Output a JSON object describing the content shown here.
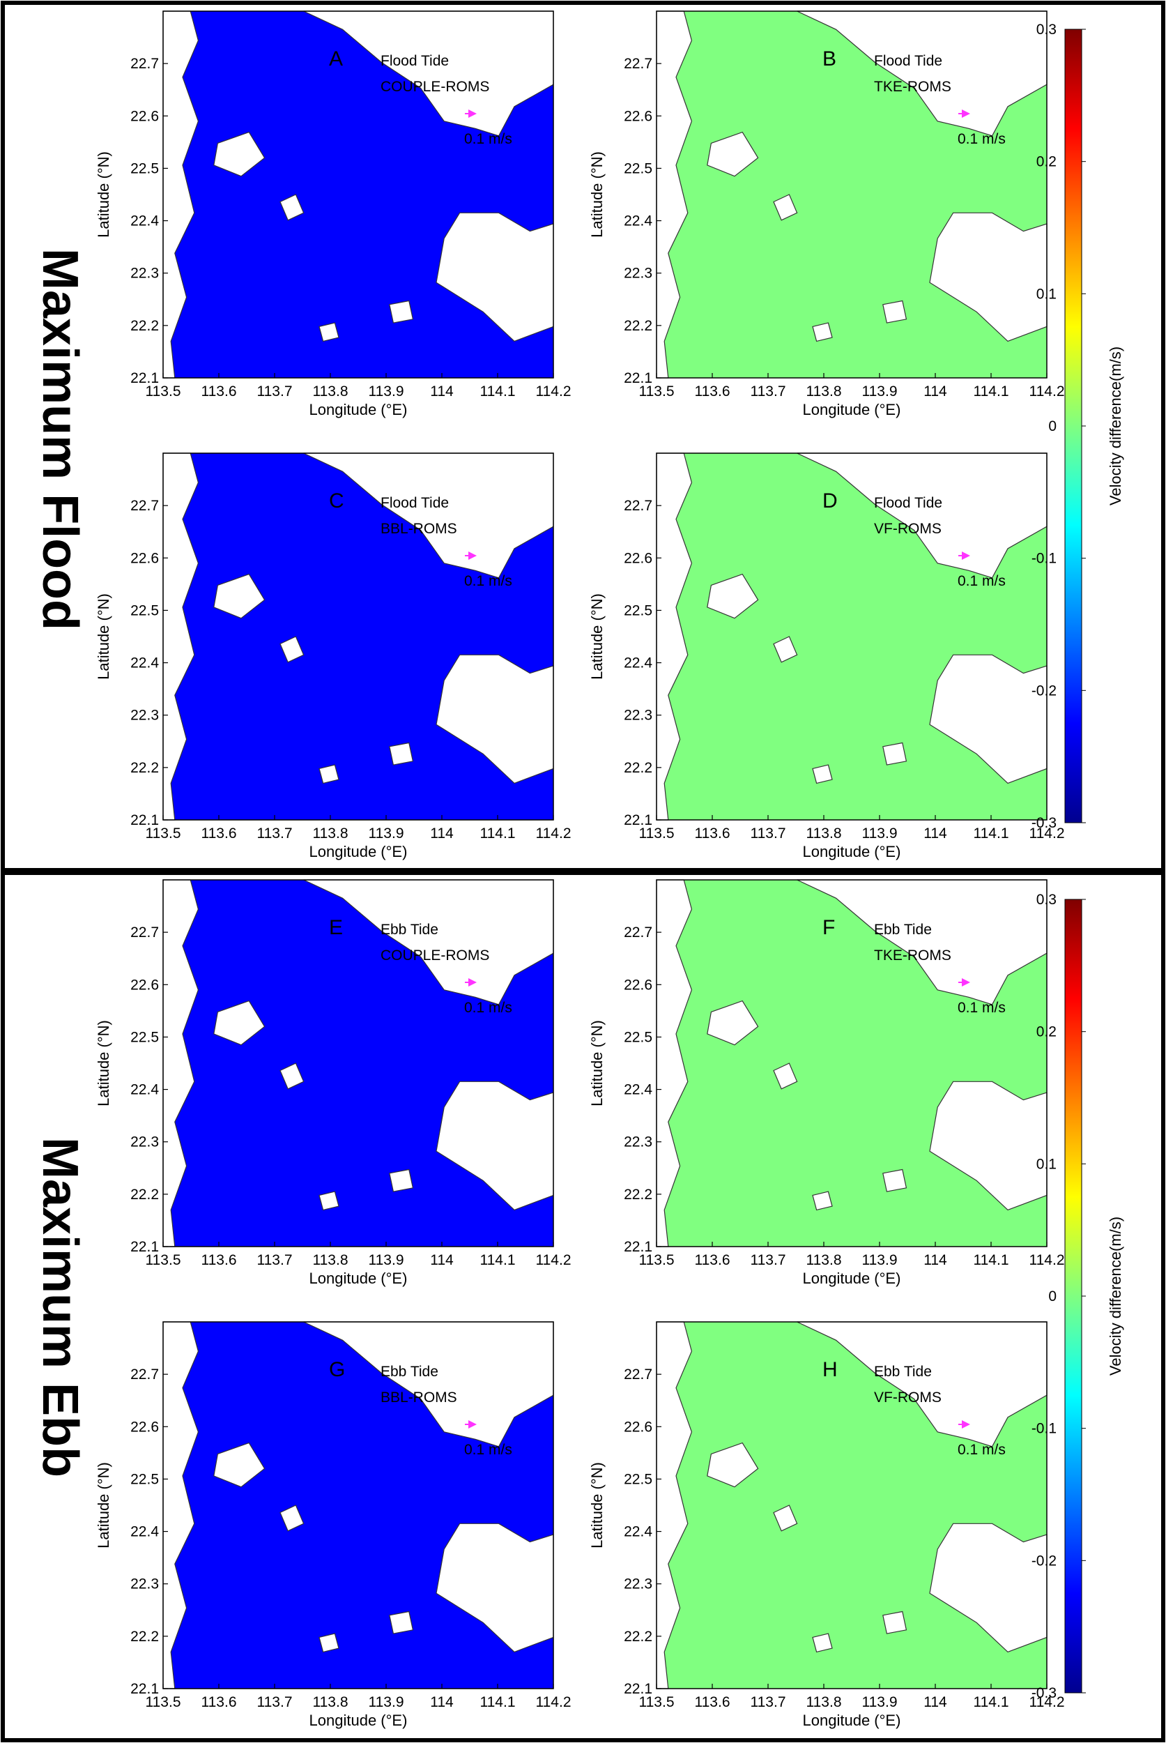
{
  "figure": {
    "sections": [
      {
        "id": "flood",
        "title": "Maximum Flood"
      },
      {
        "id": "ebb",
        "title": "Maximum Ebb"
      }
    ]
  },
  "colorbar": {
    "label": "Velocity difference(m/s)",
    "range": [
      -0.3,
      0.3
    ],
    "ticks": [
      "0.3",
      "0.2",
      "0.1",
      "0",
      "-0.1",
      "-0.2",
      "-0.3"
    ],
    "colormap": [
      "#00008f",
      "#0000ff",
      "#0080ff",
      "#00ffff",
      "#80ff80",
      "#ffff00",
      "#ff8000",
      "#ff0000",
      "#800000"
    ]
  },
  "chart_data": [
    {
      "type": "heatmap",
      "panel": "A",
      "tide": "Flood Tide",
      "model": "COUPLE-ROMS",
      "scale_label": "0.1 m/s",
      "xlabel": "Longitude (°E)",
      "ylabel": "Latitude (°N)",
      "xlim": [
        113.5,
        114.2
      ],
      "ylim": [
        22.1,
        22.8
      ],
      "xticks": [
        "113.5",
        "113.6",
        "113.7",
        "113.8",
        "113.9",
        "114",
        "114.1",
        "114.2"
      ],
      "yticks": [
        "22.1",
        "22.2",
        "22.3",
        "22.4",
        "22.5",
        "22.6",
        "22.7"
      ],
      "field_level": -0.2
    },
    {
      "type": "heatmap",
      "panel": "B",
      "tide": "Flood Tide",
      "model": "TKE-ROMS",
      "scale_label": "0.1 m/s",
      "xlabel": "Longitude (°E)",
      "ylabel": "Latitude (°N)",
      "xlim": [
        113.5,
        114.2
      ],
      "ylim": [
        22.1,
        22.8
      ],
      "xticks": [
        "113.5",
        "113.6",
        "113.7",
        "113.8",
        "113.9",
        "114",
        "114.1",
        "114.2"
      ],
      "yticks": [
        "22.1",
        "22.2",
        "22.3",
        "22.4",
        "22.5",
        "22.6",
        "22.7"
      ],
      "field_level": 0.0
    },
    {
      "type": "heatmap",
      "panel": "C",
      "tide": "Flood Tide",
      "model": "BBL-ROMS",
      "scale_label": "0.1 m/s",
      "xlabel": "Longitude (°E)",
      "ylabel": "Latitude (°N)",
      "xlim": [
        113.5,
        114.2
      ],
      "ylim": [
        22.1,
        22.8
      ],
      "xticks": [
        "113.5",
        "113.6",
        "113.7",
        "113.8",
        "113.9",
        "114",
        "114.1",
        "114.2"
      ],
      "yticks": [
        "22.1",
        "22.2",
        "22.3",
        "22.4",
        "22.5",
        "22.6",
        "22.7"
      ],
      "field_level": -0.2
    },
    {
      "type": "heatmap",
      "panel": "D",
      "tide": "Flood Tide",
      "model": "VF-ROMS",
      "scale_label": "0.1 m/s",
      "xlabel": "Longitude (°E)",
      "ylabel": "Latitude (°N)",
      "xlim": [
        113.5,
        114.2
      ],
      "ylim": [
        22.1,
        22.8
      ],
      "xticks": [
        "113.5",
        "113.6",
        "113.7",
        "113.8",
        "113.9",
        "114",
        "114.1",
        "114.2"
      ],
      "yticks": [
        "22.1",
        "22.2",
        "22.3",
        "22.4",
        "22.5",
        "22.6",
        "22.7"
      ],
      "field_level": 0.0
    },
    {
      "type": "heatmap",
      "panel": "E",
      "tide": "Ebb Tide",
      "model": "COUPLE-ROMS",
      "scale_label": "0.1 m/s",
      "xlabel": "Longitude (°E)",
      "ylabel": "Latitude (°N)",
      "xlim": [
        113.5,
        114.2
      ],
      "ylim": [
        22.1,
        22.8
      ],
      "xticks": [
        "113.5",
        "113.6",
        "113.7",
        "113.8",
        "113.9",
        "114",
        "114.1",
        "114.2"
      ],
      "yticks": [
        "22.1",
        "22.2",
        "22.3",
        "22.4",
        "22.5",
        "22.6",
        "22.7"
      ],
      "field_level": -0.2
    },
    {
      "type": "heatmap",
      "panel": "F",
      "tide": "Ebb Tide",
      "model": "TKE-ROMS",
      "scale_label": "0.1 m/s",
      "xlabel": "Longitude (°E)",
      "ylabel": "Latitude (°N)",
      "xlim": [
        113.5,
        114.2
      ],
      "ylim": [
        22.1,
        22.8
      ],
      "xticks": [
        "113.5",
        "113.6",
        "113.7",
        "113.8",
        "113.9",
        "114",
        "114.1",
        "114.2"
      ],
      "yticks": [
        "22.1",
        "22.2",
        "22.3",
        "22.4",
        "22.5",
        "22.6",
        "22.7"
      ],
      "field_level": 0.0
    },
    {
      "type": "heatmap",
      "panel": "G",
      "tide": "Ebb Tide",
      "model": "BBL-ROMS",
      "scale_label": "0.1 m/s",
      "xlabel": "Longitude (°E)",
      "ylabel": "Latitude (°N)",
      "xlim": [
        113.5,
        114.2
      ],
      "ylim": [
        22.1,
        22.8
      ],
      "xticks": [
        "113.5",
        "113.6",
        "113.7",
        "113.8",
        "113.9",
        "114",
        "114.1",
        "114.2"
      ],
      "yticks": [
        "22.1",
        "22.2",
        "22.3",
        "22.4",
        "22.5",
        "22.6",
        "22.7"
      ],
      "field_level": -0.2
    },
    {
      "type": "heatmap",
      "panel": "H",
      "tide": "Ebb Tide",
      "model": "VF-ROMS",
      "scale_label": "0.1 m/s",
      "xlabel": "Longitude (°E)",
      "ylabel": "Latitude (°N)",
      "xlim": [
        113.5,
        114.2
      ],
      "ylim": [
        22.1,
        22.8
      ],
      "xticks": [
        "113.5",
        "113.6",
        "113.7",
        "113.8",
        "113.9",
        "114",
        "114.1",
        "114.2"
      ],
      "yticks": [
        "22.1",
        "22.2",
        "22.3",
        "22.4",
        "22.5",
        "22.6",
        "22.7"
      ],
      "field_level": 0.0
    }
  ]
}
